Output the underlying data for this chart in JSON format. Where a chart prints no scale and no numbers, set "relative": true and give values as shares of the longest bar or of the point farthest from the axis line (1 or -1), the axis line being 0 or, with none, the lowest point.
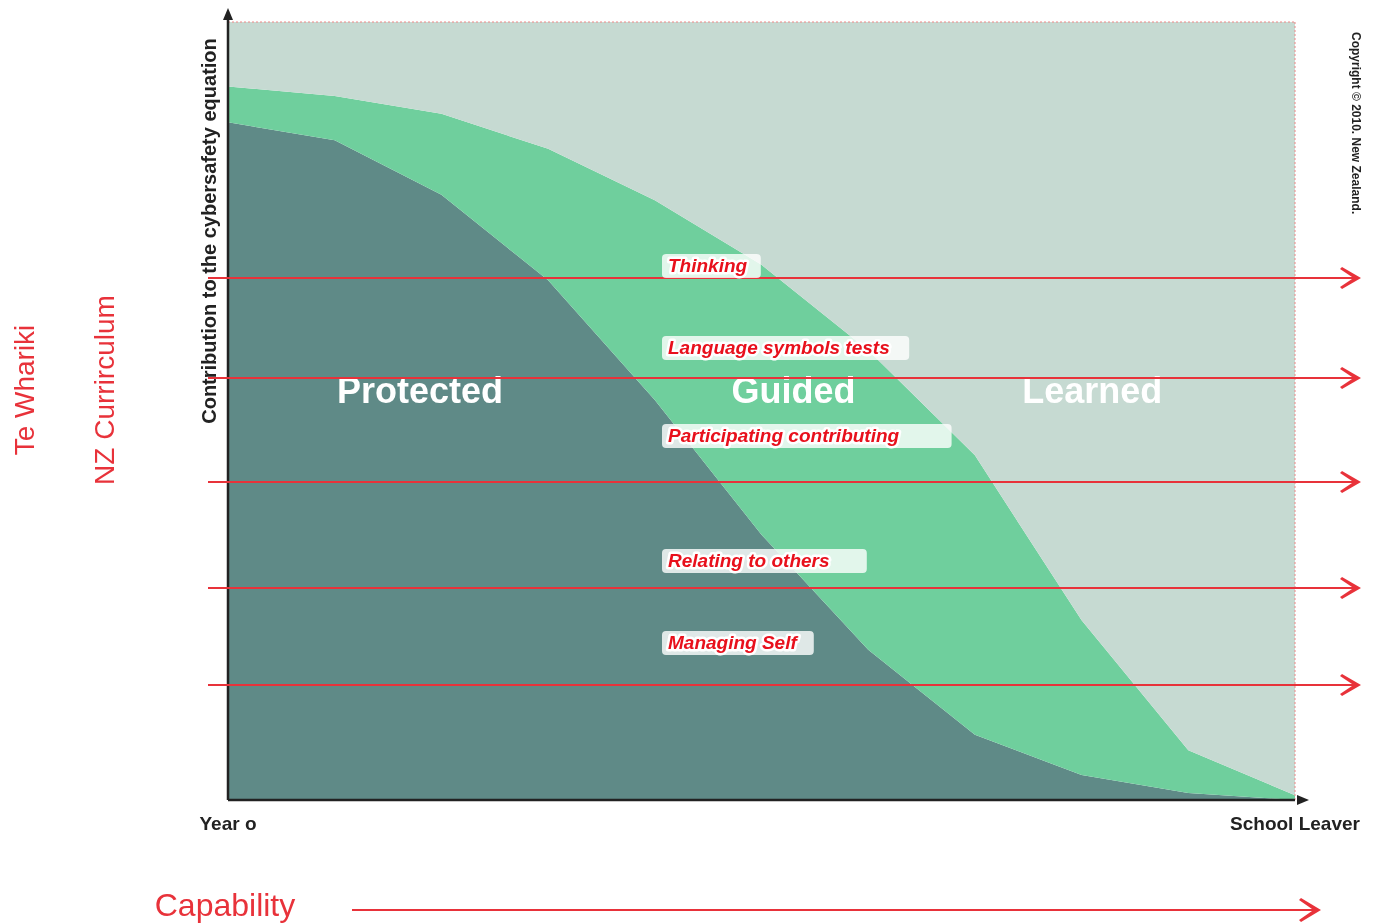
{
  "chart_data": {
    "type": "area",
    "stacked": true,
    "relative": true,
    "ylabel": "Contribution to the cybersafety equation",
    "xlabel": "Capability",
    "categories": [
      "Year o",
      null,
      null,
      null,
      null,
      null,
      null,
      null,
      null,
      null,
      "School Leaver"
    ],
    "series": [
      {
        "name": "Protected",
        "color": "#5f8a87",
        "values": [
          0.871,
          0.848,
          0.778,
          0.668,
          0.514,
          0.341,
          0.193,
          0.084,
          0.032,
          0.009,
          0
        ]
      },
      {
        "name": "Guided",
        "color": "#6fcf9d",
        "values": [
          0.046,
          0.057,
          0.104,
          0.169,
          0.257,
          0.347,
          0.385,
          0.359,
          0.199,
          0.055,
          0.006
        ]
      },
      {
        "name": "Learned",
        "color": "#c6dad2",
        "values": [
          0.083,
          0.095,
          0.118,
          0.163,
          0.229,
          0.312,
          0.422,
          0.557,
          0.769,
          0.936,
          0.994
        ]
      }
    ],
    "annotations": [
      "Te Whariki",
      "NZ Currirculum",
      "Copyright © 2010. New Zealand.",
      "Thinking",
      "Language symbols tests",
      "Participating contributing",
      "Relating to others",
      "Managing Self"
    ]
  }
}
